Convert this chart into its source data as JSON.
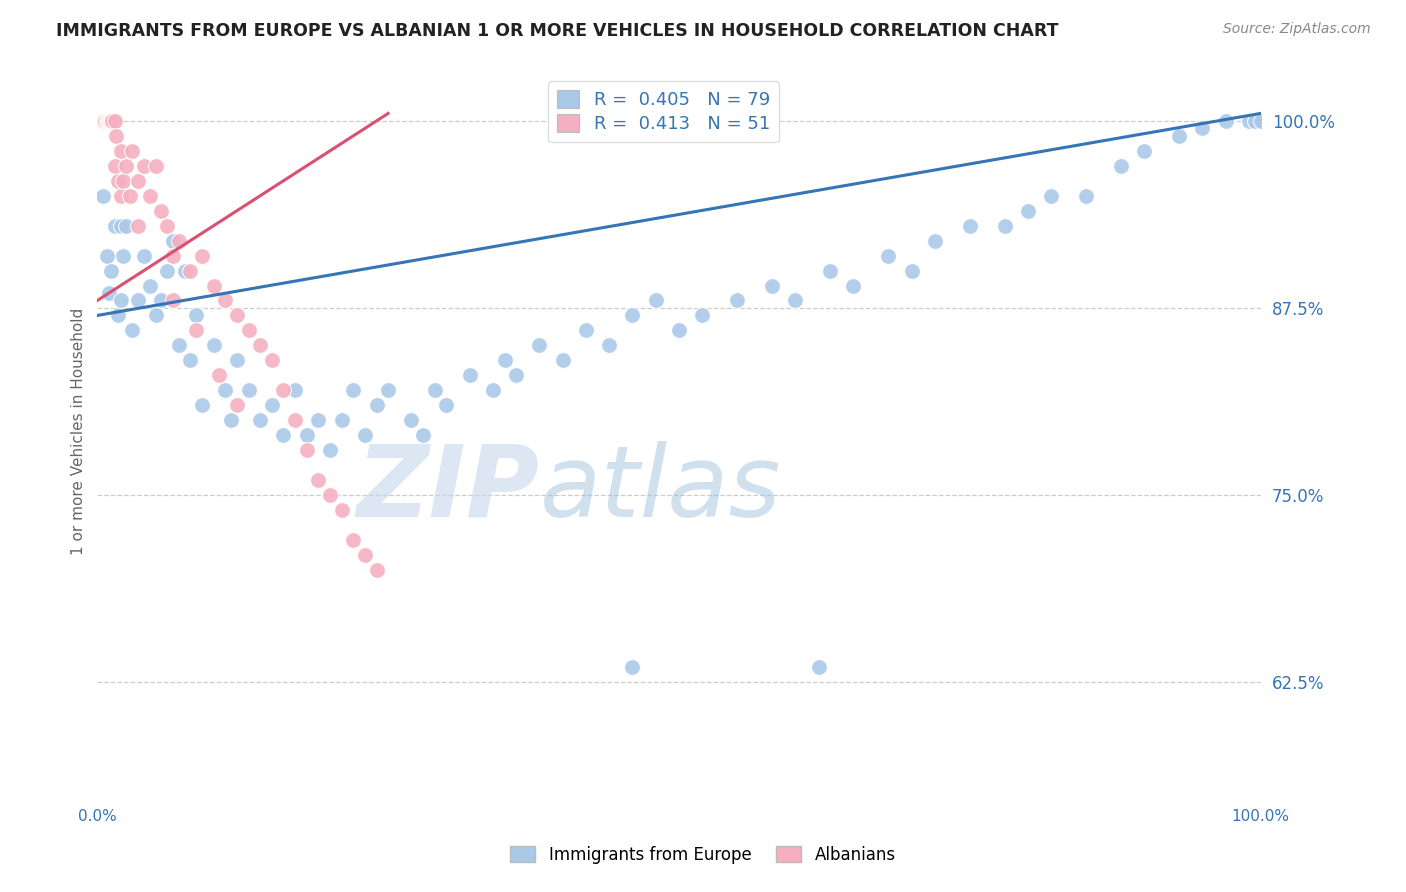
{
  "title": "IMMIGRANTS FROM EUROPE VS ALBANIAN 1 OR MORE VEHICLES IN HOUSEHOLD CORRELATION CHART",
  "source": "Source: ZipAtlas.com",
  "ylabel": "1 or more Vehicles in Household",
  "yticks": [
    62.5,
    75.0,
    87.5,
    100.0
  ],
  "ytick_labels": [
    "62.5%",
    "75.0%",
    "87.5%",
    "100.0%"
  ],
  "xlim": [
    0.0,
    100.0
  ],
  "ylim": [
    55.0,
    103.5
  ],
  "legend_labels": [
    "Immigrants from Europe",
    "Albanians"
  ],
  "R_europe": 0.405,
  "N_europe": 79,
  "R_albanian": 0.413,
  "N_albanian": 51,
  "blue_color": "#aac9e8",
  "pink_color": "#f5afc0",
  "trend_blue": "#3575b5",
  "trend_pink": "#d95070",
  "watermark_zip": "ZIP",
  "watermark_atlas": "atlas",
  "blue_scatter_x": [
    0.5,
    0.8,
    1.0,
    1.2,
    1.5,
    1.8,
    2.0,
    2.0,
    2.2,
    2.5,
    3.0,
    3.5,
    4.0,
    4.5,
    5.0,
    5.5,
    6.0,
    6.5,
    7.0,
    7.5,
    8.0,
    8.5,
    9.0,
    10.0,
    11.0,
    11.5,
    12.0,
    13.0,
    14.0,
    15.0,
    16.0,
    17.0,
    18.0,
    19.0,
    20.0,
    21.0,
    22.0,
    23.0,
    24.0,
    25.0,
    27.0,
    28.0,
    29.0,
    30.0,
    32.0,
    34.0,
    35.0,
    36.0,
    38.0,
    40.0,
    42.0,
    44.0,
    46.0,
    48.0,
    50.0,
    52.0,
    55.0,
    58.0,
    60.0,
    63.0,
    65.0,
    68.0,
    70.0,
    72.0,
    75.0,
    78.0,
    80.0,
    82.0,
    85.0,
    88.0,
    90.0,
    93.0,
    95.0,
    97.0,
    99.0,
    99.5,
    100.0,
    46.0,
    62.0
  ],
  "blue_scatter_y": [
    95.0,
    91.0,
    88.5,
    90.0,
    93.0,
    87.0,
    93.0,
    88.0,
    91.0,
    93.0,
    86.0,
    88.0,
    91.0,
    89.0,
    87.0,
    88.0,
    90.0,
    92.0,
    85.0,
    90.0,
    84.0,
    87.0,
    81.0,
    85.0,
    82.0,
    80.0,
    84.0,
    82.0,
    80.0,
    81.0,
    79.0,
    82.0,
    79.0,
    80.0,
    78.0,
    80.0,
    82.0,
    79.0,
    81.0,
    82.0,
    80.0,
    79.0,
    82.0,
    81.0,
    83.0,
    82.0,
    84.0,
    83.0,
    85.0,
    84.0,
    86.0,
    85.0,
    87.0,
    88.0,
    86.0,
    87.0,
    88.0,
    89.0,
    88.0,
    90.0,
    89.0,
    91.0,
    90.0,
    92.0,
    93.0,
    93.0,
    94.0,
    95.0,
    95.0,
    97.0,
    98.0,
    99.0,
    99.5,
    100.0,
    100.0,
    100.0,
    100.0,
    63.5,
    63.5
  ],
  "pink_scatter_x": [
    0.3,
    0.4,
    0.5,
    0.6,
    0.7,
    0.8,
    0.9,
    1.0,
    1.1,
    1.2,
    1.3,
    1.5,
    1.5,
    1.6,
    1.8,
    2.0,
    2.0,
    2.2,
    2.5,
    2.8,
    3.0,
    3.5,
    4.0,
    4.5,
    5.0,
    5.5,
    6.0,
    6.5,
    7.0,
    8.0,
    9.0,
    10.0,
    11.0,
    12.0,
    13.0,
    14.0,
    15.0,
    16.0,
    17.0,
    18.0,
    19.0,
    20.0,
    21.0,
    22.0,
    23.0,
    24.0,
    3.5,
    6.5,
    8.5,
    10.5,
    12.0
  ],
  "pink_scatter_y": [
    100.0,
    100.0,
    100.0,
    100.0,
    100.0,
    100.0,
    100.0,
    100.0,
    100.0,
    100.0,
    100.0,
    100.0,
    97.0,
    99.0,
    96.0,
    98.0,
    95.0,
    96.0,
    97.0,
    95.0,
    98.0,
    96.0,
    97.0,
    95.0,
    97.0,
    94.0,
    93.0,
    91.0,
    92.0,
    90.0,
    91.0,
    89.0,
    88.0,
    87.0,
    86.0,
    85.0,
    84.0,
    82.0,
    80.0,
    78.0,
    76.0,
    75.0,
    74.0,
    72.0,
    71.0,
    70.0,
    93.0,
    88.0,
    86.0,
    83.0,
    81.0
  ],
  "blue_trend_x0": 0.0,
  "blue_trend_y0": 87.0,
  "blue_trend_x1": 100.0,
  "blue_trend_y1": 100.5,
  "pink_trend_x0": 0.0,
  "pink_trend_y0": 88.0,
  "pink_trend_x1": 25.0,
  "pink_trend_y1": 100.5
}
